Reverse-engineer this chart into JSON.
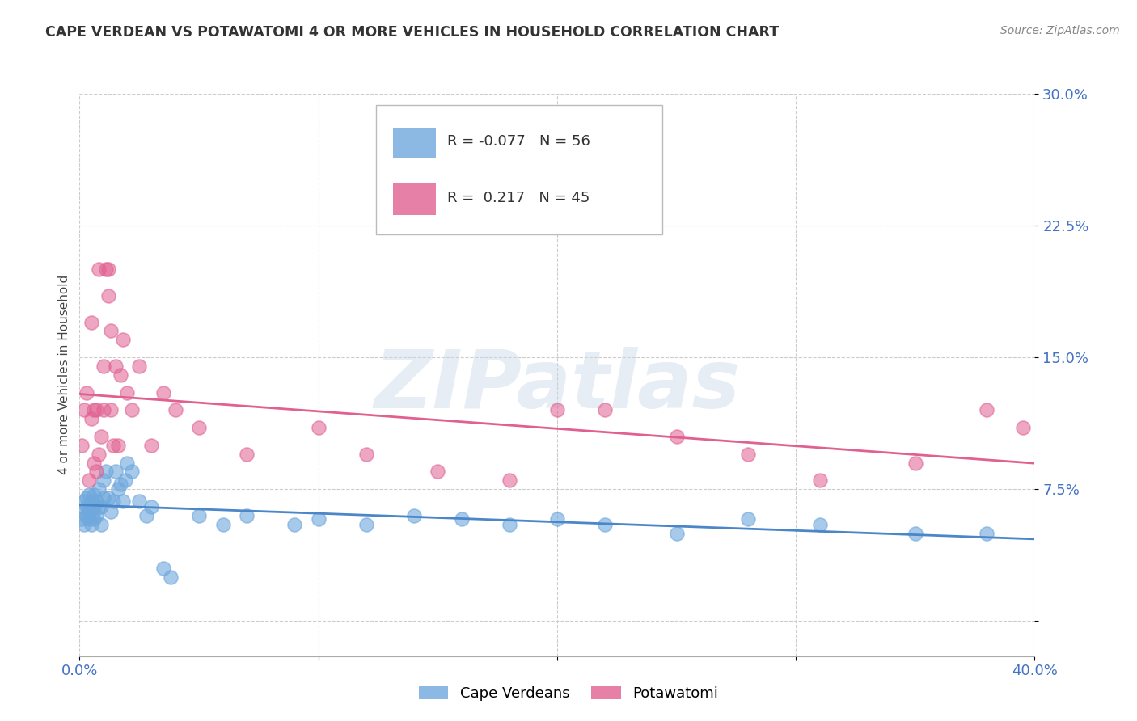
{
  "title": "CAPE VERDEAN VS POTAWATOMI 4 OR MORE VEHICLES IN HOUSEHOLD CORRELATION CHART",
  "source": "Source: ZipAtlas.com",
  "ylabel": "4 or more Vehicles in Household",
  "xlim": [
    0.0,
    0.4
  ],
  "ylim": [
    -0.02,
    0.3
  ],
  "xticks": [
    0.0,
    0.1,
    0.2,
    0.3,
    0.4
  ],
  "xtick_labels": [
    "0.0%",
    "",
    "",
    "",
    "40.0%"
  ],
  "yticks": [
    0.0,
    0.075,
    0.15,
    0.225,
    0.3
  ],
  "ytick_labels": [
    "",
    "7.5%",
    "15.0%",
    "22.5%",
    "30.0%"
  ],
  "blue_R": -0.077,
  "blue_N": 56,
  "pink_R": 0.217,
  "pink_N": 45,
  "blue_color": "#6fa8dc",
  "pink_color": "#e06090",
  "blue_line_color": "#4a86c8",
  "pink_line_color": "#e06090",
  "watermark_text": "ZIPatlas",
  "blue_x": [
    0.001,
    0.001,
    0.002,
    0.002,
    0.003,
    0.003,
    0.003,
    0.004,
    0.004,
    0.004,
    0.005,
    0.005,
    0.005,
    0.006,
    0.006,
    0.006,
    0.007,
    0.007,
    0.008,
    0.008,
    0.009,
    0.009,
    0.01,
    0.01,
    0.011,
    0.012,
    0.013,
    0.014,
    0.015,
    0.016,
    0.017,
    0.018,
    0.019,
    0.02,
    0.022,
    0.025,
    0.028,
    0.03,
    0.035,
    0.038,
    0.05,
    0.06,
    0.07,
    0.09,
    0.1,
    0.12,
    0.14,
    0.16,
    0.18,
    0.2,
    0.22,
    0.25,
    0.28,
    0.31,
    0.35,
    0.38
  ],
  "blue_y": [
    0.058,
    0.062,
    0.055,
    0.068,
    0.06,
    0.065,
    0.07,
    0.058,
    0.063,
    0.072,
    0.055,
    0.06,
    0.068,
    0.058,
    0.065,
    0.072,
    0.06,
    0.068,
    0.065,
    0.075,
    0.055,
    0.065,
    0.08,
    0.07,
    0.085,
    0.07,
    0.062,
    0.068,
    0.085,
    0.075,
    0.078,
    0.068,
    0.08,
    0.09,
    0.085,
    0.068,
    0.06,
    0.065,
    0.03,
    0.025,
    0.06,
    0.055,
    0.06,
    0.055,
    0.058,
    0.055,
    0.06,
    0.058,
    0.055,
    0.058,
    0.055,
    0.05,
    0.058,
    0.055,
    0.05,
    0.05
  ],
  "pink_x": [
    0.001,
    0.002,
    0.003,
    0.004,
    0.005,
    0.005,
    0.006,
    0.006,
    0.007,
    0.007,
    0.008,
    0.008,
    0.009,
    0.01,
    0.01,
    0.011,
    0.012,
    0.012,
    0.013,
    0.013,
    0.014,
    0.015,
    0.016,
    0.017,
    0.018,
    0.02,
    0.022,
    0.025,
    0.03,
    0.035,
    0.04,
    0.05,
    0.07,
    0.1,
    0.12,
    0.15,
    0.18,
    0.2,
    0.22,
    0.25,
    0.28,
    0.31,
    0.35,
    0.38,
    0.395
  ],
  "pink_y": [
    0.1,
    0.12,
    0.13,
    0.08,
    0.115,
    0.17,
    0.09,
    0.12,
    0.085,
    0.12,
    0.095,
    0.2,
    0.105,
    0.12,
    0.145,
    0.2,
    0.2,
    0.185,
    0.165,
    0.12,
    0.1,
    0.145,
    0.1,
    0.14,
    0.16,
    0.13,
    0.12,
    0.145,
    0.1,
    0.13,
    0.12,
    0.11,
    0.095,
    0.11,
    0.095,
    0.085,
    0.08,
    0.12,
    0.12,
    0.105,
    0.095,
    0.08,
    0.09,
    0.12,
    0.11
  ]
}
